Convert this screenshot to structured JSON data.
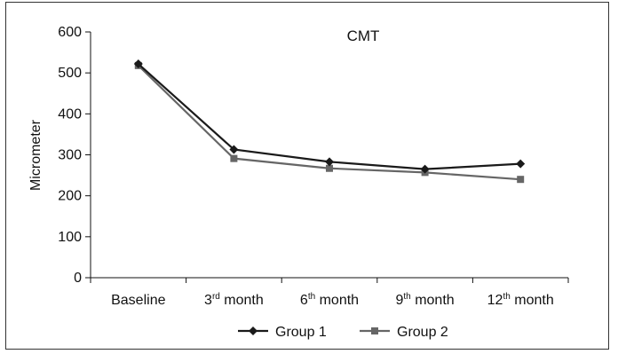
{
  "chart_data": {
    "type": "line",
    "title": "CMT",
    "xlabel": "",
    "ylabel": "Micrometer",
    "ylim": [
      0,
      600
    ],
    "yticks": [
      0,
      100,
      200,
      300,
      400,
      500,
      600
    ],
    "categories": [
      {
        "base": "Baseline",
        "sup": ""
      },
      {
        "base": "3",
        "sup": "rd",
        "rest": " month"
      },
      {
        "base": "6",
        "sup": "th",
        "rest": " month"
      },
      {
        "base": "9",
        "sup": "th",
        "rest": " month"
      },
      {
        "base": "12",
        "sup": "th",
        "rest": " month"
      }
    ],
    "series": [
      {
        "name": "Group 1",
        "values": [
          522,
          313,
          283,
          265,
          278
        ],
        "color": "#1a1a1a",
        "marker": "diamond"
      },
      {
        "name": "Group 2",
        "values": [
          518,
          291,
          267,
          257,
          240
        ],
        "color": "#666666",
        "marker": "square"
      }
    ],
    "grid": false,
    "legend": "bottom"
  }
}
